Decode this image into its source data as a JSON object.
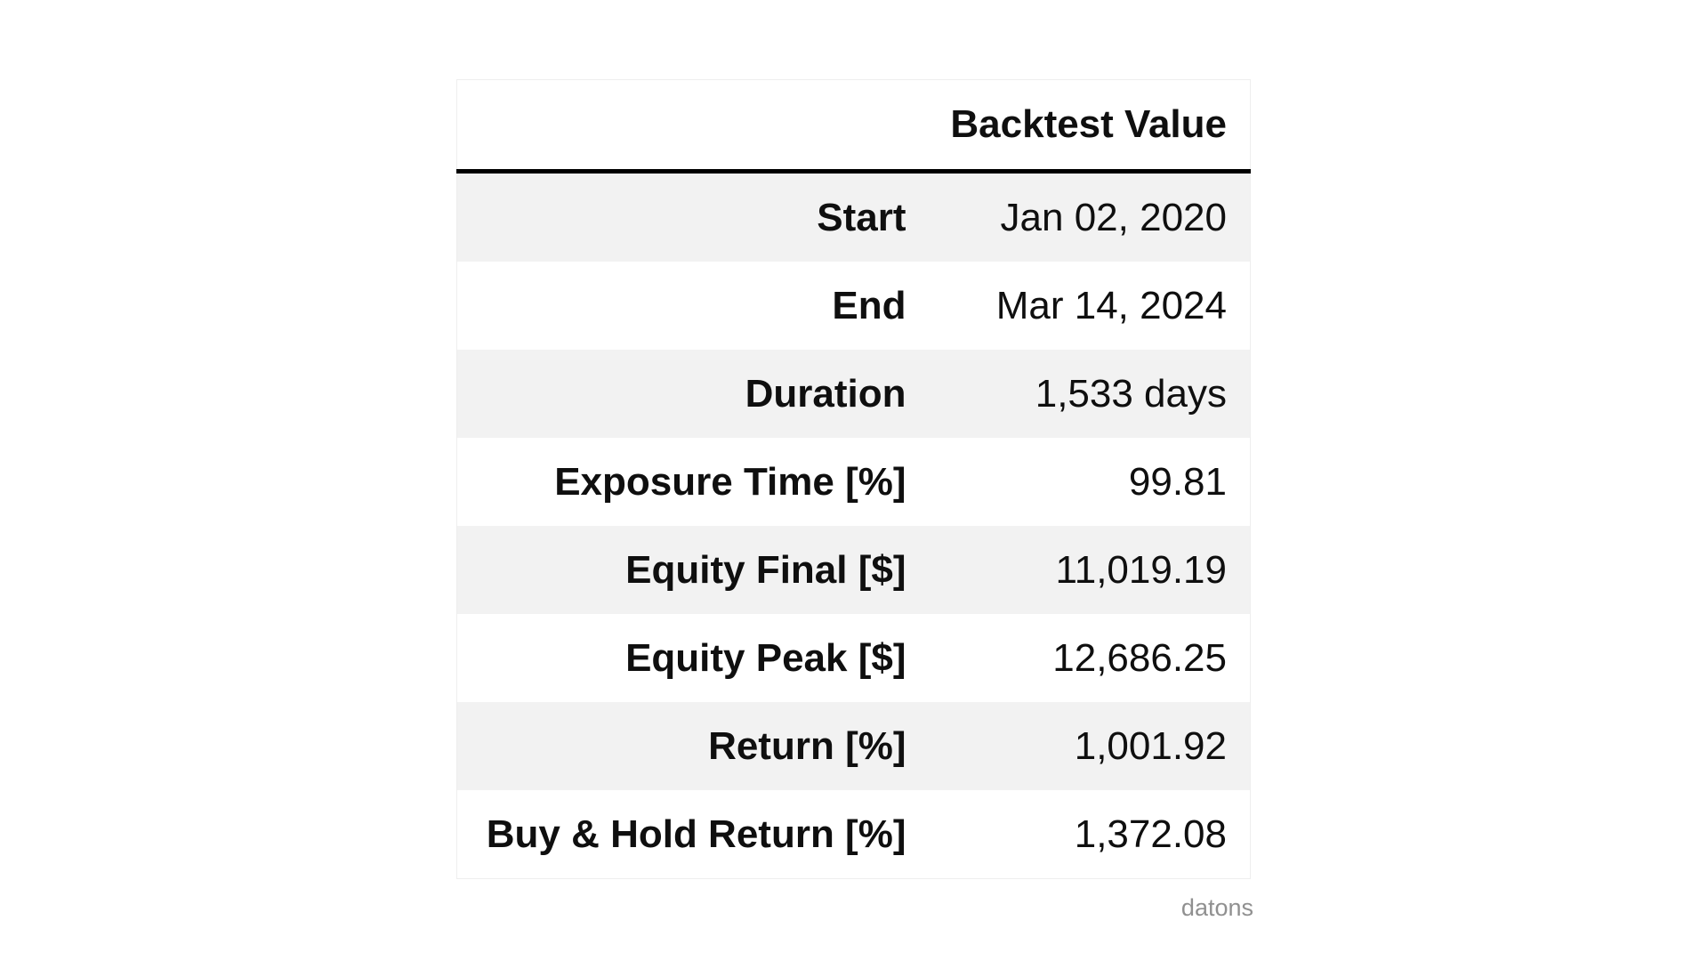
{
  "chart_data": {
    "type": "table",
    "title": "Backtest Value",
    "columns": [
      "",
      "Backtest Value"
    ],
    "rows": [
      [
        "Start",
        "Jan 02, 2020"
      ],
      [
        "End",
        "Mar 14, 2024"
      ],
      [
        "Duration",
        "1,533 days"
      ],
      [
        "Exposure Time [%]",
        "99.81"
      ],
      [
        "Equity Final [$]",
        "11,019.19"
      ],
      [
        "Equity Peak [$]",
        "12,686.25"
      ],
      [
        "Return [%]",
        "1,001.92"
      ],
      [
        "Buy & Hold Return [%]",
        "1,372.08"
      ]
    ],
    "layout": {
      "striped": true,
      "stripe_start": "first-row",
      "label_align": "right",
      "value_align": "right",
      "header_rule": "heavy-black-bottom"
    }
  },
  "watermark": {
    "text": "datons"
  },
  "colors": {
    "background": "#ffffff",
    "row_stripe": "#f2f2f2",
    "header_rule": "#000000",
    "table_border": "#eeeeee",
    "text": "#0f0f0f",
    "watermark": "#909090"
  }
}
